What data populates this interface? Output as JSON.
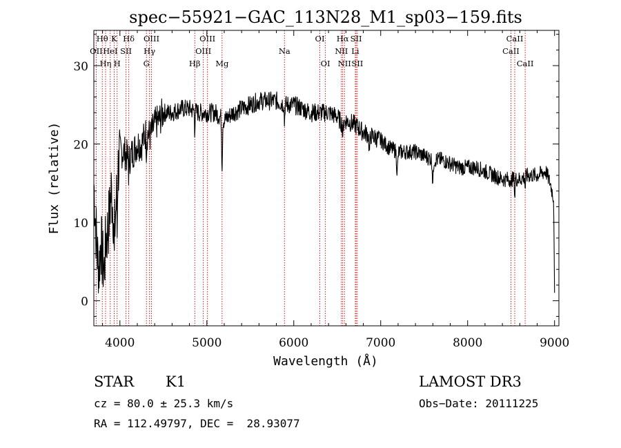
{
  "chart_data": {
    "type": "line",
    "title": "spec−55921−GAC_113N28_M1_sp03−159.fits",
    "xlabel": "Wavelength (Å)",
    "ylabel": "Flux (relative)",
    "xlim": [
      3700,
      9050
    ],
    "ylim": [
      -3.2,
      34.5
    ],
    "x_ticks": [
      4000,
      5000,
      6000,
      7000,
      8000,
      9000
    ],
    "y_ticks": [
      0,
      10,
      20,
      30
    ],
    "line_color": "#000000",
    "marker_color": "#cc0000",
    "spectrum_anchors": {
      "x": [
        3700,
        3720,
        3740,
        3760,
        3780,
        3800,
        3820,
        3840,
        3860,
        3880,
        3900,
        3920,
        3940,
        3960,
        3980,
        4000,
        4050,
        4100,
        4150,
        4200,
        4250,
        4300,
        4350,
        4400,
        4450,
        4500,
        4600,
        4700,
        4800,
        4900,
        5000,
        5100,
        5200,
        5300,
        5400,
        5500,
        5600,
        5700,
        5800,
        5900,
        6000,
        6100,
        6200,
        6300,
        6400,
        6500,
        6560,
        6600,
        6700,
        6800,
        6900,
        7000,
        7100,
        7200,
        7300,
        7400,
        7500,
        7600,
        7700,
        7800,
        7900,
        8000,
        8100,
        8200,
        8300,
        8400,
        8500,
        8600,
        8700,
        8800,
        8900,
        8950,
        8990,
        9000
      ],
      "y": [
        15,
        10,
        6,
        4,
        8,
        5,
        4,
        8,
        9,
        11,
        14,
        12,
        9,
        13,
        17,
        19,
        19,
        18,
        19,
        20,
        20,
        21.5,
        21,
        22.5,
        23,
        24,
        24,
        24.5,
        24.5,
        24,
        24,
        24,
        23,
        24,
        24.5,
        25,
        25.5,
        25.5,
        25.5,
        25,
        25,
        24.5,
        24,
        24,
        24,
        23.5,
        22.5,
        23,
        22.5,
        21.5,
        21,
        20.5,
        19.5,
        19,
        19,
        19,
        18.5,
        18,
        18,
        17.5,
        17,
        17,
        17,
        16.5,
        16,
        15.5,
        15.5,
        15.5,
        16,
        16,
        16.5,
        15,
        13,
        1
      ]
    },
    "spectral_lines": [
      {
        "label": "Hθ",
        "wavelength": 3797,
        "row": 1
      },
      {
        "label": "OII",
        "wavelength": 3727,
        "row": 2
      },
      {
        "label": "Hη",
        "wavelength": 3835,
        "row": 3
      },
      {
        "label": "K",
        "wavelength": 3934,
        "row": 1
      },
      {
        "label": "HeI",
        "wavelength": 3889,
        "row": 2
      },
      {
        "label": "H",
        "wavelength": 3968,
        "row": 3
      },
      {
        "label": "Hδ",
        "wavelength": 4102,
        "row": 1
      },
      {
        "label": "SII",
        "wavelength": 4070,
        "row": 2
      },
      {
        "label": "OIII",
        "wavelength": 4363,
        "row": 1
      },
      {
        "label": "Hγ",
        "wavelength": 4340,
        "row": 2
      },
      {
        "label": "G",
        "wavelength": 4305,
        "row": 3
      },
      {
        "label": "OIII",
        "wavelength": 5007,
        "row": 1
      },
      {
        "label": "OIII",
        "wavelength": 4959,
        "row": 2
      },
      {
        "label": "Hβ",
        "wavelength": 4861,
        "row": 3
      },
      {
        "label": "Mg",
        "wavelength": 5175,
        "row": 3
      },
      {
        "label": "Na",
        "wavelength": 5893,
        "row": 2
      },
      {
        "label": "OI",
        "wavelength": 6300,
        "row": 1
      },
      {
        "label": "OI",
        "wavelength": 6364,
        "row": 3
      },
      {
        "label": "Hα",
        "wavelength": 6563,
        "row": 1
      },
      {
        "label": "NII",
        "wavelength": 6548,
        "row": 2
      },
      {
        "label": "NII",
        "wavelength": 6583,
        "row": 3
      },
      {
        "label": "SII",
        "wavelength": 6717,
        "row": 1
      },
      {
        "label": "Li",
        "wavelength": 6708,
        "row": 2
      },
      {
        "label": "SII",
        "wavelength": 6731,
        "row": 3
      },
      {
        "label": "CaII",
        "wavelength": 8542,
        "row": 1
      },
      {
        "label": "CaII",
        "wavelength": 8498,
        "row": 2
      },
      {
        "label": "CaII",
        "wavelength": 8662,
        "row": 3
      }
    ]
  },
  "info": {
    "class_label": "STAR",
    "subclass_label": "K1",
    "survey_label": "LAMOST DR3",
    "cz_label": "cz = 80.0 ± 25.3 km/s",
    "obs_date_label": "Obs−Date: 20111225",
    "coords_label": "RA = 112.49797, DEC =  28.93077"
  }
}
